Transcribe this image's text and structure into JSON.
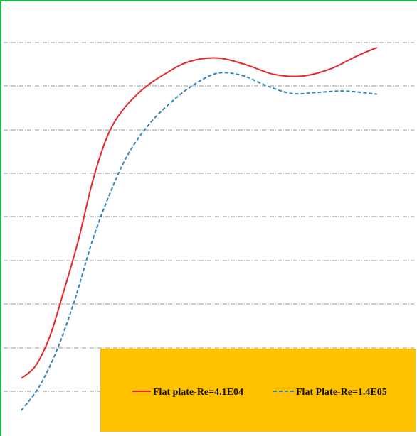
{
  "chart_data": {
    "type": "line",
    "title": "",
    "xlabel": "",
    "ylabel": "",
    "grid": true,
    "legend_placement": "bottom",
    "colors": {
      "frame": "#22b14c",
      "gridline": "#9a9a9a",
      "legend_background": "#ffc000",
      "series_1": "#e8262d",
      "series_2": "#2e86c1"
    },
    "series": [
      {
        "name": "Flat plate-Re=4.1E04",
        "style": "solid",
        "points": [
          [
            0.0,
            0.037
          ],
          [
            0.04,
            0.073
          ],
          [
            0.08,
            0.157
          ],
          [
            0.12,
            0.29
          ],
          [
            0.16,
            0.432
          ],
          [
            0.2,
            0.601
          ],
          [
            0.24,
            0.727
          ],
          [
            0.28,
            0.8
          ],
          [
            0.34,
            0.865
          ],
          [
            0.4,
            0.908
          ],
          [
            0.47,
            0.945
          ],
          [
            0.55,
            0.956
          ],
          [
            0.63,
            0.937
          ],
          [
            0.71,
            0.909
          ],
          [
            0.79,
            0.904
          ],
          [
            0.87,
            0.925
          ],
          [
            0.94,
            0.96
          ],
          [
            1.0,
            0.986
          ]
        ]
      },
      {
        "name": "Flat Plate-Re=1.4E05",
        "style": "dashed",
        "points": [
          [
            0.0,
            -0.055
          ],
          [
            0.05,
            0.013
          ],
          [
            0.1,
            0.118
          ],
          [
            0.15,
            0.262
          ],
          [
            0.2,
            0.433
          ],
          [
            0.25,
            0.57
          ],
          [
            0.3,
            0.68
          ],
          [
            0.36,
            0.767
          ],
          [
            0.42,
            0.828
          ],
          [
            0.48,
            0.876
          ],
          [
            0.55,
            0.912
          ],
          [
            0.62,
            0.906
          ],
          [
            0.69,
            0.876
          ],
          [
            0.76,
            0.854
          ],
          [
            0.83,
            0.857
          ],
          [
            0.91,
            0.861
          ],
          [
            1.0,
            0.852
          ]
        ]
      }
    ]
  }
}
